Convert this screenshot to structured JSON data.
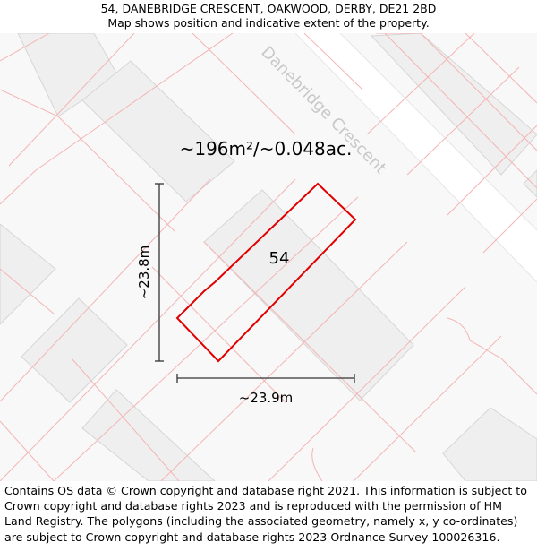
{
  "header": {
    "address": "54, DANEBRIDGE CRESCENT, OAKWOOD, DERBY, DE21 2BD",
    "subtitle": "Map shows position and indicative extent of the property."
  },
  "map": {
    "street_name": "Danebridge Crescent",
    "area_label": "~196m²/~0.048ac.",
    "plot_number": "54",
    "height_label": "~23.8m",
    "width_label": "~23.9m",
    "colors": {
      "background": "#f8f8f8",
      "building": "#efefef",
      "building_stroke": "#d6d6d6",
      "road": "#ffffff",
      "boundary": "#f4b4b4",
      "highlight": "#e00000",
      "dimension": "#333333",
      "street_text": "#c8c8c8"
    }
  },
  "footer": {
    "copyright": "Contains OS data © Crown copyright and database right 2021. This information is subject to Crown copyright and database rights 2023 and is reproduced with the permission of HM Land Registry. The polygons (including the associated geometry, namely x, y co-ordinates) are subject to Crown copyright and database rights 2023 Ordnance Survey 100026316."
  }
}
